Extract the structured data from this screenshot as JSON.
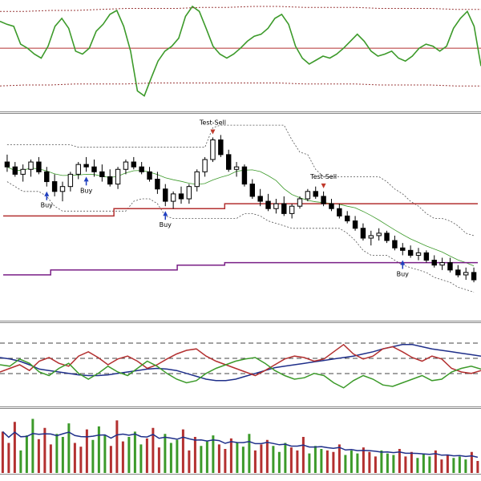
{
  "chart_data": [
    {
      "type": "line",
      "panel": "oscillator-top",
      "series": [
        {
          "color": "#3c9a2a",
          "style": "solid",
          "values": [
            85,
            82,
            80,
            62,
            58,
            52,
            48,
            60,
            80,
            88,
            78,
            55,
            52,
            58,
            75,
            82,
            92,
            96,
            80,
            55,
            15,
            10,
            28,
            45,
            55,
            60,
            68,
            90,
            100,
            95,
            78,
            60,
            52,
            48,
            52,
            58,
            65,
            70,
            72,
            78,
            88,
            92,
            82,
            60,
            48,
            42,
            46,
            50,
            48,
            52,
            58,
            65,
            72,
            65,
            55,
            50,
            52,
            55,
            48,
            45,
            50,
            58,
            62,
            60,
            55,
            60,
            78,
            88,
            95,
            80,
            40
          ]
        },
        {
          "color": "#9a3a3a",
          "style": "dashed",
          "values": [
            95,
            95,
            96,
            96,
            97,
            98,
            98,
            98,
            99,
            99,
            100,
            100,
            99,
            99,
            99,
            98,
            98,
            98,
            97,
            97
          ]
        },
        {
          "color": "#9a3a3a",
          "style": "dashed",
          "values": [
            20,
            21,
            21,
            22,
            22,
            22,
            23,
            23,
            23,
            23,
            23,
            23,
            22,
            22,
            22,
            21,
            21,
            21,
            20,
            20
          ]
        }
      ],
      "level_line": {
        "value": 58,
        "color": "#b33030"
      }
    },
    {
      "type": "candlestick",
      "panel": "price",
      "candles": [
        [
          118,
          121,
          114,
          116
        ],
        [
          116,
          118,
          112,
          113
        ],
        [
          113,
          117,
          110,
          115
        ],
        [
          115,
          119,
          112,
          118
        ],
        [
          118,
          120,
          113,
          114
        ],
        [
          114,
          116,
          108,
          110
        ],
        [
          110,
          113,
          104,
          106
        ],
        [
          106,
          110,
          102,
          108
        ],
        [
          108,
          114,
          106,
          113
        ],
        [
          113,
          118,
          111,
          117
        ],
        [
          117,
          120,
          114,
          116
        ],
        [
          116,
          119,
          112,
          114
        ],
        [
          114,
          117,
          110,
          112
        ],
        [
          112,
          115,
          108,
          109
        ],
        [
          109,
          116,
          107,
          115
        ],
        [
          115,
          119,
          113,
          118
        ],
        [
          118,
          120,
          115,
          116
        ],
        [
          116,
          118,
          113,
          114
        ],
        [
          114,
          116,
          110,
          111
        ],
        [
          111,
          114,
          105,
          107
        ],
        [
          107,
          109,
          100,
          102
        ],
        [
          102,
          106,
          99,
          105
        ],
        [
          105,
          108,
          101,
          103
        ],
        [
          103,
          109,
          101,
          108
        ],
        [
          108,
          115,
          106,
          114
        ],
        [
          114,
          120,
          112,
          119
        ],
        [
          119,
          128,
          118,
          127
        ],
        [
          127,
          129,
          120,
          121
        ],
        [
          121,
          123,
          114,
          115
        ],
        [
          115,
          118,
          112,
          116
        ],
        [
          116,
          117,
          108,
          109
        ],
        [
          109,
          111,
          103,
          104
        ],
        [
          104,
          107,
          100,
          102
        ],
        [
          102,
          105,
          98,
          99
        ],
        [
          99,
          103,
          97,
          101
        ],
        [
          101,
          104,
          96,
          97
        ],
        [
          97,
          101,
          95,
          100
        ],
        [
          100,
          104,
          99,
          103
        ],
        [
          103,
          107,
          102,
          106
        ],
        [
          106,
          108,
          103,
          104
        ],
        [
          104,
          106,
          100,
          101
        ],
        [
          101,
          103,
          98,
          99
        ],
        [
          99,
          101,
          95,
          96
        ],
        [
          96,
          98,
          93,
          94
        ],
        [
          94,
          96,
          90,
          91
        ],
        [
          91,
          93,
          86,
          87
        ],
        [
          87,
          90,
          84,
          88
        ],
        [
          88,
          91,
          86,
          89
        ],
        [
          89,
          90,
          85,
          86
        ],
        [
          86,
          88,
          82,
          83
        ],
        [
          83,
          85,
          80,
          82
        ],
        [
          82,
          84,
          79,
          80
        ],
        [
          80,
          83,
          78,
          81
        ],
        [
          81,
          82,
          77,
          78
        ],
        [
          78,
          80,
          75,
          76
        ],
        [
          76,
          79,
          74,
          77
        ],
        [
          77,
          79,
          73,
          74
        ],
        [
          74,
          76,
          71,
          72
        ],
        [
          72,
          75,
          70,
          73
        ],
        [
          73,
          75,
          69,
          70
        ]
      ],
      "annotations": [
        {
          "text": "Test-Sell",
          "index": 26
        },
        {
          "text": "Test-Sell",
          "index": 40
        },
        {
          "text": "Buy",
          "index": 5
        },
        {
          "text": "Buy",
          "index": 10
        },
        {
          "text": "Buy",
          "index": 20
        },
        {
          "text": "Buy",
          "index": 50
        }
      ],
      "support_line": {
        "color": "#b33030"
      },
      "resistance_line": {
        "color": "#7a1f86"
      }
    },
    {
      "type": "line",
      "panel": "oscillator-lower",
      "series": [
        {
          "color": "#1f2f8a",
          "values": [
            60,
            58,
            55,
            50,
            44,
            42,
            40,
            38,
            36,
            35,
            35,
            36,
            38,
            40,
            42,
            44,
            45,
            44,
            42,
            38,
            34,
            30,
            28,
            28,
            30,
            34,
            38,
            42,
            46,
            48,
            50,
            52,
            54,
            56,
            58,
            60,
            62,
            65,
            68,
            72,
            75,
            78,
            78,
            75,
            72,
            70,
            68,
            66,
            64,
            62
          ]
        },
        {
          "color": "#b33030",
          "values": [
            40,
            45,
            50,
            42,
            55,
            60,
            52,
            48,
            62,
            68,
            60,
            50,
            58,
            62,
            55,
            45,
            50,
            58,
            65,
            70,
            72,
            62,
            55,
            50,
            45,
            40,
            35,
            42,
            50,
            58,
            62,
            60,
            55,
            58,
            68,
            78,
            65,
            58,
            62,
            72,
            75,
            68,
            60,
            55,
            62,
            58,
            45,
            40,
            38,
            42
          ]
        },
        {
          "color": "#3c9a2a",
          "values": [
            50,
            48,
            58,
            52,
            40,
            35,
            45,
            52,
            38,
            30,
            38,
            48,
            40,
            35,
            45,
            55,
            48,
            38,
            30,
            25,
            28,
            38,
            45,
            50,
            55,
            58,
            60,
            52,
            42,
            35,
            30,
            32,
            38,
            35,
            25,
            18,
            28,
            35,
            30,
            22,
            20,
            25,
            30,
            35,
            28,
            30,
            40,
            45,
            48,
            44
          ]
        }
      ]
    },
    {
      "type": "bar",
      "panel": "volume",
      "values": [
        55,
        40,
        68,
        30,
        50,
        72,
        45,
        60,
        38,
        52,
        48,
        66,
        40,
        35,
        58,
        44,
        62,
        50,
        36,
        70,
        42,
        48,
        55,
        38,
        46,
        60,
        34,
        52,
        40,
        44,
        58,
        30,
        48,
        36,
        42,
        50,
        38,
        32,
        46,
        40,
        35,
        52,
        30,
        38,
        44,
        36,
        28,
        40,
        34,
        30,
        48,
        26,
        36,
        32,
        30,
        28,
        38,
        24,
        30,
        26,
        34,
        28,
        22,
        30,
        26,
        24,
        32,
        22,
        28,
        20,
        26,
        22,
        30,
        18,
        24,
        20,
        22,
        18,
        28,
        16
      ],
      "avg_line_color": "#1f2f8a"
    }
  ]
}
